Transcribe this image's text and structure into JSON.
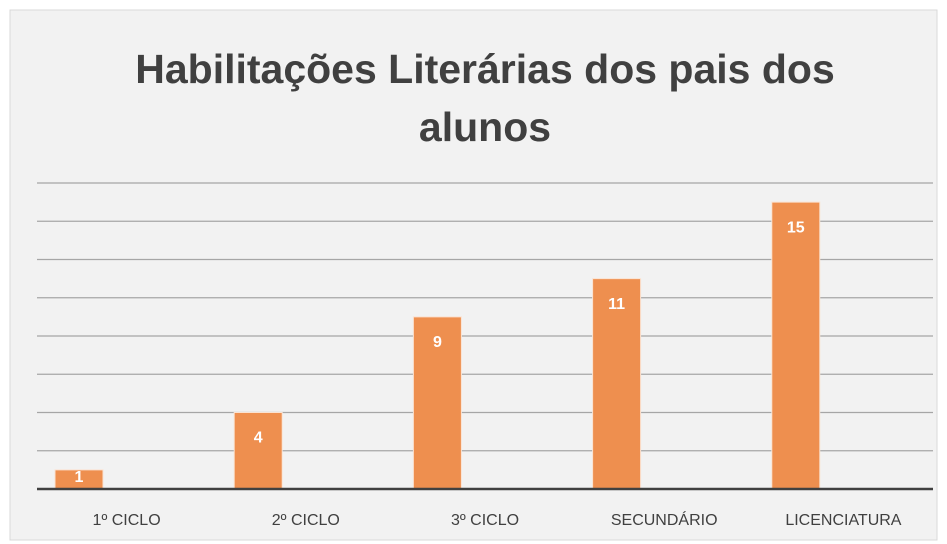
{
  "chart_data": {
    "type": "bar",
    "title": "Habilitações Literárias dos pais dos alunos",
    "categories": [
      "1º CICLO",
      "2º CICLO",
      "3º CICLO",
      "SECUNDÁRIO",
      "LICENCIATURA"
    ],
    "values": [
      1,
      4,
      9,
      11,
      15
    ],
    "color": "#ee8f4f",
    "ylim": [
      0,
      16
    ],
    "yticks": [
      0,
      2,
      4,
      6,
      8,
      10,
      12,
      14,
      16
    ],
    "grid": true
  }
}
